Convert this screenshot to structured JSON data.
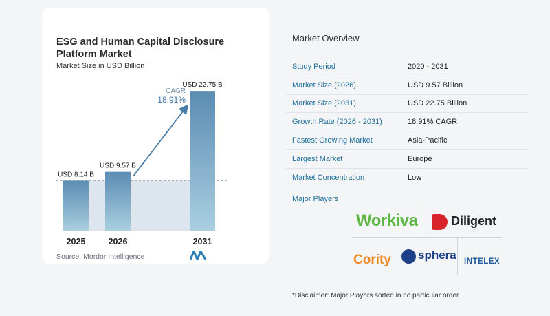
{
  "chart": {
    "title": "ESG and Human Capital Disclosure Platform Market",
    "subtitle": "Market Size in USD Billion",
    "source": "Source: Mordor Intelligence",
    "cagr_label": "CAGR",
    "cagr_value": "18.91%"
  },
  "chart_data": {
    "type": "bar",
    "title": "ESG and Human Capital Disclosure Platform Market",
    "subtitle": "Market Size in USD Billion",
    "categories": [
      "2025",
      "2026",
      "2031"
    ],
    "values": [
      8.14,
      9.57,
      22.75
    ],
    "value_labels": [
      "USD 8.14 B",
      "USD 9.57 B",
      "USD 22.75 B"
    ],
    "ylim": [
      0,
      24
    ],
    "grid": false,
    "annotations": [
      {
        "text": "CAGR",
        "value": "18.91%"
      }
    ],
    "colors": {
      "bar_top": "#5b8cb3",
      "bar_bottom": "#a9cfe0",
      "shade": "#dde6ef",
      "arrow": "#4a7ea8"
    }
  },
  "overview": {
    "title": "Market Overview",
    "rows": [
      {
        "label": "Study Period",
        "value": "2020 - 2031"
      },
      {
        "label": "Market Size (2026)",
        "value": "USD 9.57 Billion"
      },
      {
        "label": "Market Size (2031)",
        "value": "USD 22.75 Billion"
      },
      {
        "label": "Growth Rate (2026 - 2031)",
        "value": "18.91% CAGR"
      },
      {
        "label": "Fastest Growing Market",
        "value": "Asia-Pacific"
      },
      {
        "label": "Largest Market",
        "value": "Europe"
      },
      {
        "label": "Market Concentration",
        "value": "Low"
      }
    ]
  },
  "players": {
    "title": "Major Players",
    "logos": [
      "Workiva",
      "Diligent",
      "Cority",
      "sphera",
      "INTELEX"
    ]
  },
  "disclaimer": "*Disclaimer: Major Players sorted in no particular order"
}
